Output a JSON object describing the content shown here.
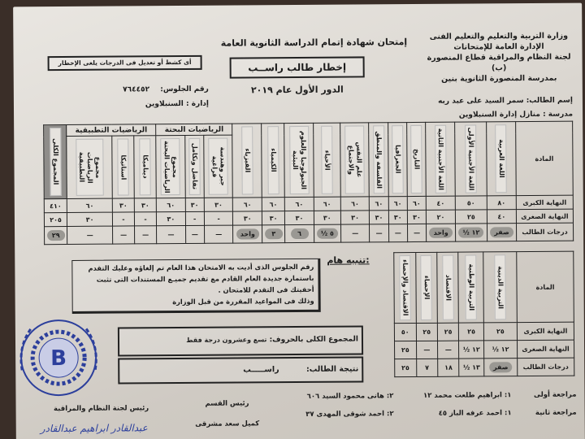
{
  "header": {
    "ministry_lines": [
      "وزارة التربية والتعليم والتعليم الفنى",
      "الإدارة العامة للإمتحانات",
      "لجنة النظام والمراقبة قطاع المنصورة (ب)",
      "بمدرسة المنصورة الثانوية بنين"
    ],
    "exam_title": "إمتحان شهادة إتمام الدراسة الثانوية العامة",
    "notice_title": "إخطار طالب راســب",
    "session": "الدور الأول عام ٢٠١٩",
    "warning": "أى كشط أو تعديل فى الدرجات يلغى الإخطار",
    "student_name_label": "إسم الطالب:",
    "student_name": "سمر السيد على عبد ربه",
    "school_label": "مدرسة :",
    "school": "منازل إدارة السنبلاوين",
    "seat_label": "رقم الجلوس:",
    "seat_number": "٧٦٤٤٥٢",
    "admin_label": "إدارة :",
    "admin": "السنبلاوين"
  },
  "main_table": {
    "row_labels": {
      "subject": "المادة",
      "max": "النهاية الكبرى",
      "min": "النهاية الصغرى",
      "score": "درجات الطالب"
    },
    "groups": {
      "pure": "الرياضيات البحتة",
      "applied": "الرياضيات التطبيقية"
    },
    "columns": [
      {
        "name": "اللغة العربية",
        "max": "٨٠",
        "min": "٤٠",
        "score": "صفر",
        "circled": true
      },
      {
        "name": "اللغة الأجنبية الأولى",
        "max": "٥٠",
        "min": "٢٥",
        "score": "١٢ ½",
        "circled": true
      },
      {
        "name": "اللغة الأجنبية الثانية",
        "max": "٤٠",
        "min": "٢٠",
        "score": "واحد",
        "circled": true
      },
      {
        "name": "التاريخ",
        "max": "٦٠",
        "min": "٣٠",
        "score": "—"
      },
      {
        "name": "الجغرافيا",
        "max": "٦٠",
        "min": "٣٠",
        "score": "—"
      },
      {
        "name": "الفلسفة والمنطق",
        "max": "٦٠",
        "min": "٣٠",
        "score": "—"
      },
      {
        "name": "علم النفس والاجتماع",
        "max": "٦٠",
        "min": "٣٠",
        "score": "—"
      },
      {
        "name": "الأحياء",
        "max": "٦٠",
        "min": "٣٠",
        "score": "٥ ½",
        "circled": true
      },
      {
        "name": "الجيولوجيا والعلوم البيئية",
        "max": "٦٠",
        "min": "٣٠",
        "score": "٦",
        "circled": true
      },
      {
        "name": "الكيمياء",
        "max": "٦٠",
        "min": "٣٠",
        "score": "٣",
        "circled": true
      },
      {
        "name": "الفيزياء",
        "max": "٦٠",
        "min": "٣٠",
        "score": "واحد",
        "circled": true
      },
      {
        "name": "جبر وهندسة فراغية",
        "max": "٣٠",
        "min": "-",
        "score": "—",
        "group": "pure"
      },
      {
        "name": "تفاضل وتكامل",
        "max": "٣٠",
        "min": "-",
        "score": "—",
        "group": "pure"
      },
      {
        "name": "مجموع الرياضيات البحتة",
        "max": "٦٠",
        "min": "٣٠",
        "score": "—",
        "group": "pure"
      },
      {
        "name": "ديناميكا",
        "max": "٣٠",
        "min": "-",
        "score": "—",
        "group": "applied"
      },
      {
        "name": "استاتيكا",
        "max": "٣٠",
        "min": "-",
        "score": "—",
        "group": "applied"
      },
      {
        "name": "مجموع الرياضيات التطبيقية",
        "max": "٦٠",
        "min": "٣٠",
        "score": "—",
        "group": "applied"
      },
      {
        "name": "المجموع الكلى",
        "max": "٤١٠",
        "min": "٢٠٥",
        "score": "٢٩",
        "circled": true,
        "shaded": true
      }
    ]
  },
  "secondary_table": {
    "row_labels": {
      "subject": "المادة",
      "max": "النهاية الكبرى",
      "min": "النهاية الصغرى",
      "score": "درجات الطالب"
    },
    "columns": [
      {
        "name": "التربية الدينية",
        "max": "٢٥",
        "min": "١٢ ½",
        "score": "صفر",
        "circled": true
      },
      {
        "name": "التربية الوطنية",
        "max": "٢٥",
        "min": "١٢ ½",
        "score": "١٣ ½"
      },
      {
        "name": "الاقتصاد",
        "max": "٢٥",
        "min": "—",
        "score": "١٨"
      },
      {
        "name": "الإحصاء",
        "max": "٢٥",
        "min": "—",
        "score": "٧"
      },
      {
        "name": "الاقتصاد والإحصاء",
        "max": "٥٠",
        "min": "٢٥",
        "score": "٢٥"
      }
    ]
  },
  "important_notice": {
    "title": "تنبيه هام:",
    "lines": [
      "رقم الجلوس الذى أديت به الامتحان هذا العام تم إلغاؤه وعليك التقدم",
      "باستمارة جديدة العام القادم مع تقديم جميـع المستندات التى تثبت",
      "أحقيتك فى التقدم للامتحان .",
      "وذلك فى المواعيد المقررة من قبل الوزارة"
    ]
  },
  "totals": {
    "words_label": "المجموع الكلى بالحروف:",
    "words": "تسع وعشرون درجة فقط",
    "result_label": "نتيجة الطالب:",
    "result": "راســـــب"
  },
  "signatures": {
    "review1_label": "مراجعة أولى",
    "review1_a": "١: ابراهيم طلعت محمد ١٢",
    "review1_b": "٢: هانى محمود السيد ٦٠٦",
    "review2_label": "مراجعة ثانية",
    "review2_a": "١: احمد عرفه الباز ٤٥",
    "review2_b": "٢: احمد شوقى المهدى ٣٧",
    "dept_head_label": "رئيس القسم",
    "dept_head": "كميل سعد مشرقى",
    "committee_head_label": "رئيس لجنة النظام والمراقبة",
    "committee_head_signature": "عبدالقادر ابراهيم عبدالقادر",
    "seal_text": "لجنة النظام والمراقبة امتحان الثانوية العامة"
  },
  "colors": {
    "paper": "#dcd8d2",
    "ink": "#1c1c1c",
    "seal": "#2c3f9c",
    "circle": "#9a9893"
  }
}
